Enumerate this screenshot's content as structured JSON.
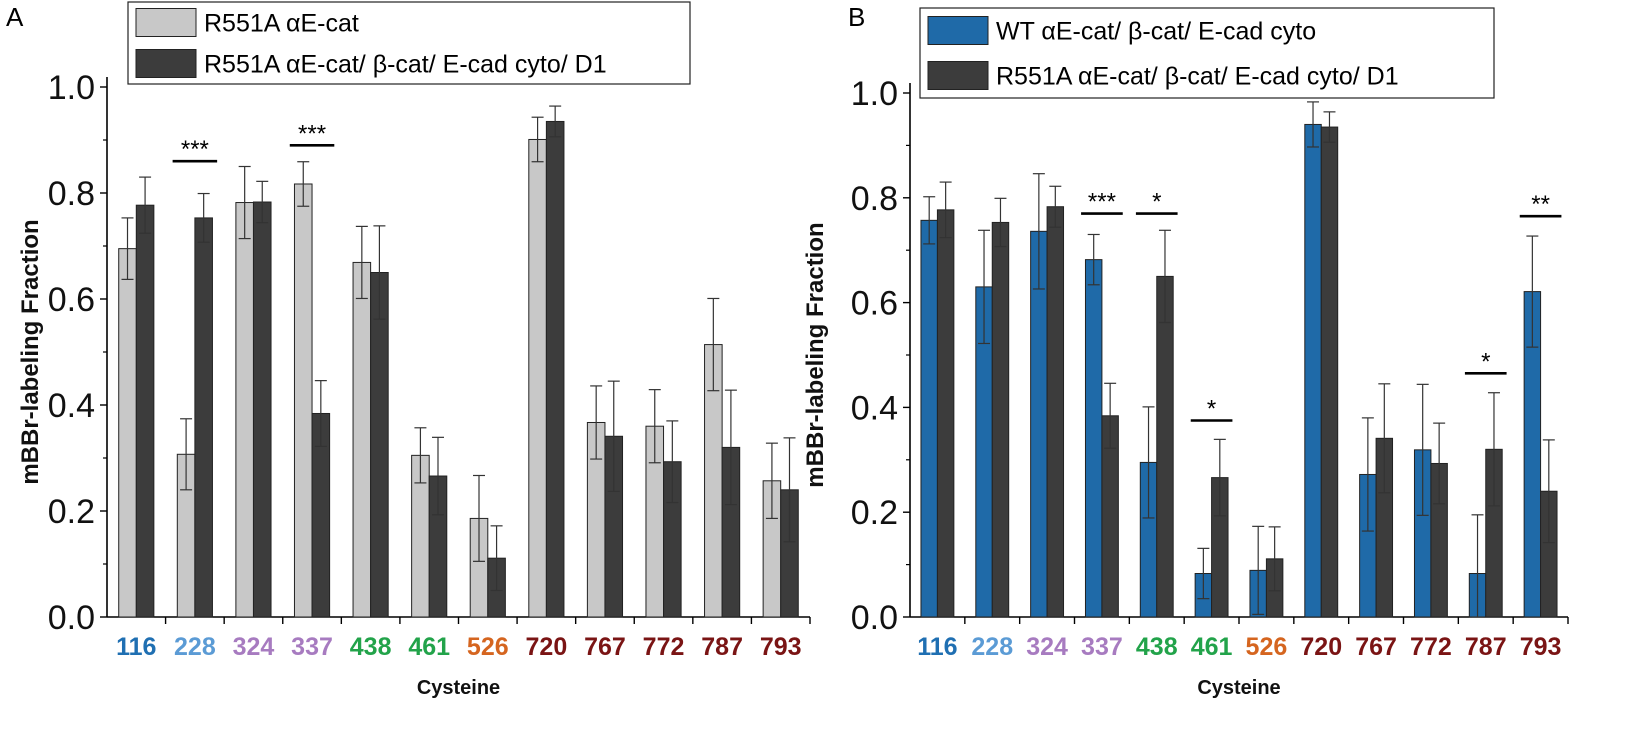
{
  "figure": {
    "panel_labels": [
      "A",
      "B"
    ]
  },
  "chart_data": [
    {
      "type": "bar",
      "panel": "A",
      "title": "",
      "xlabel": "Cysteine",
      "ylabel": "mBBr-labeling Fraction",
      "ylim": [
        0,
        1.0
      ],
      "yticks": [
        "0.0",
        "0.2",
        "0.4",
        "0.6",
        "0.8",
        "1.0"
      ],
      "legend_position": "top-left",
      "categories": [
        "116",
        "228",
        "324",
        "337",
        "438",
        "461",
        "526",
        "720",
        "767",
        "772",
        "787",
        "793"
      ],
      "category_colors": [
        "#1f6fb2",
        "#5b9bd5",
        "#a77bc0",
        "#a77bc0",
        "#22a34a",
        "#22a34a",
        "#d5651f",
        "#7a1414",
        "#7a1414",
        "#7a1414",
        "#7a1414",
        "#7a1414"
      ],
      "series": [
        {
          "name": "R551A αE-cat",
          "color": "#c8c8c8",
          "values": [
            0.695,
            0.307,
            0.782,
            0.817,
            0.669,
            0.305,
            0.186,
            0.901,
            0.367,
            0.36,
            0.514,
            0.257
          ],
          "errors": [
            0.058,
            0.067,
            0.068,
            0.042,
            0.068,
            0.052,
            0.081,
            0.042,
            0.069,
            0.069,
            0.087,
            0.071
          ]
        },
        {
          "name": "R551A αE-cat/ β-cat/ E-cad cyto/ D1",
          "color": "#3c3c3c",
          "values": [
            0.777,
            0.753,
            0.783,
            0.384,
            0.65,
            0.266,
            0.111,
            0.935,
            0.341,
            0.293,
            0.32,
            0.24
          ],
          "errors": [
            0.053,
            0.046,
            0.039,
            0.062,
            0.088,
            0.073,
            0.061,
            0.029,
            0.104,
            0.077,
            0.108,
            0.098
          ]
        }
      ],
      "significance": [
        {
          "category_index": 1,
          "label": "***",
          "y": 0.86
        },
        {
          "category_index": 3,
          "label": "***",
          "y": 0.89
        }
      ]
    },
    {
      "type": "bar",
      "panel": "B",
      "title": "",
      "xlabel": "Cysteine",
      "ylabel": "mBBr-labeling Fraction",
      "ylim": [
        0,
        1.0
      ],
      "yticks": [
        "0.0",
        "0.2",
        "0.4",
        "0.6",
        "0.8",
        "1.0"
      ],
      "legend_position": "top-left",
      "categories": [
        "116",
        "228",
        "324",
        "337",
        "438",
        "461",
        "526",
        "720",
        "767",
        "772",
        "787",
        "793"
      ],
      "category_colors": [
        "#1f6fb2",
        "#5b9bd5",
        "#a77bc0",
        "#a77bc0",
        "#22a34a",
        "#22a34a",
        "#d5651f",
        "#7a1414",
        "#7a1414",
        "#7a1414",
        "#7a1414",
        "#7a1414"
      ],
      "series": [
        {
          "name": "WT αE-cat/ β-cat/ E-cad cyto",
          "color": "#1f6aa8",
          "values": [
            0.757,
            0.63,
            0.736,
            0.682,
            0.295,
            0.083,
            0.089,
            0.94,
            0.272,
            0.319,
            0.083,
            0.621
          ],
          "errors": [
            0.045,
            0.108,
            0.11,
            0.048,
            0.106,
            0.048,
            0.084,
            0.043,
            0.108,
            0.125,
            0.112,
            0.106
          ]
        },
        {
          "name": "R551A αE-cat/ β-cat/ E-cad cyto/ D1",
          "color": "#3c3c3c",
          "values": [
            0.777,
            0.753,
            0.783,
            0.384,
            0.65,
            0.266,
            0.111,
            0.935,
            0.341,
            0.293,
            0.32,
            0.24
          ],
          "errors": [
            0.053,
            0.046,
            0.039,
            0.062,
            0.088,
            0.073,
            0.061,
            0.029,
            0.104,
            0.077,
            0.108,
            0.098
          ]
        }
      ],
      "significance": [
        {
          "category_index": 3,
          "label": "***",
          "y": 0.77
        },
        {
          "category_index": 4,
          "label": "*",
          "y": 0.77
        },
        {
          "category_index": 5,
          "label": "*",
          "y": 0.375
        },
        {
          "category_index": 10,
          "label": "*",
          "y": 0.465
        },
        {
          "category_index": 11,
          "label": "**",
          "y": 0.765
        }
      ]
    }
  ]
}
